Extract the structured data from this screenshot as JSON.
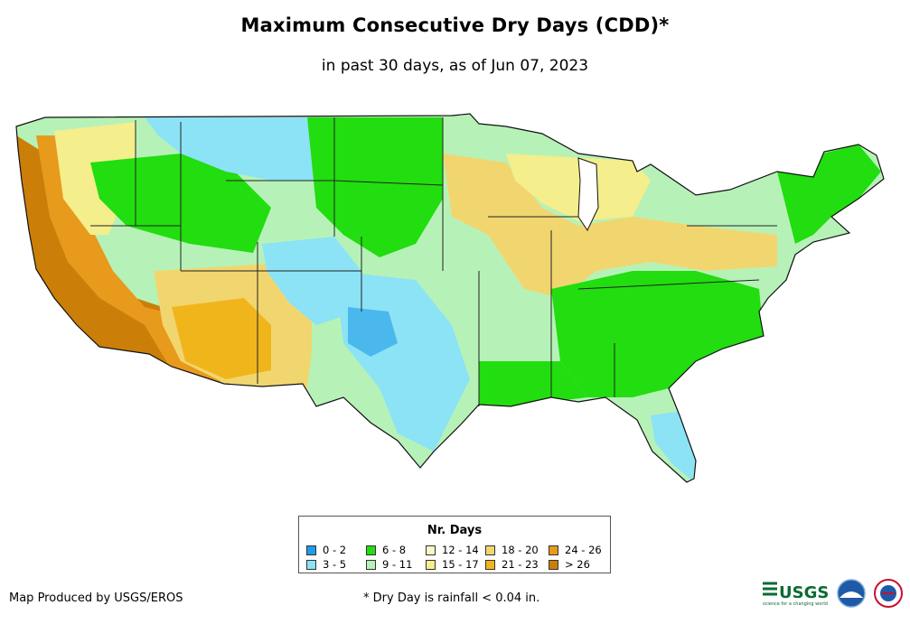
{
  "map": {
    "title": "Maximum Consecutive Dry Days (CDD)*",
    "subtitle": "in past 30 days, as of Jun 07, 2023",
    "region": "Contiguous United States"
  },
  "legend": {
    "title": "Nr. Days",
    "items": [
      {
        "label": "0 - 2",
        "color": "#1f9be8"
      },
      {
        "label": "3 - 5",
        "color": "#8ce3f5"
      },
      {
        "label": "6 - 8",
        "color": "#22dd0f"
      },
      {
        "label": "9 - 11",
        "color": "#b6f2b8"
      },
      {
        "label": "12 - 14",
        "color": "#f8f8c6"
      },
      {
        "label": "15 - 17",
        "color": "#f4ee8c"
      },
      {
        "label": "18 - 20",
        "color": "#f1d66f"
      },
      {
        "label": "21 - 23",
        "color": "#f1b51c"
      },
      {
        "label": "24 - 26",
        "color": "#e79a1c"
      },
      {
        "label": "> 26",
        "color": "#cc7f08"
      }
    ]
  },
  "footer": {
    "credit": "Map Produced by USGS/EROS",
    "footnote": "* Dry Day is rainfall < 0.04 in.",
    "logo_usgs_text": "USGS",
    "logo_usgs_tagline": "science for a changing world"
  }
}
